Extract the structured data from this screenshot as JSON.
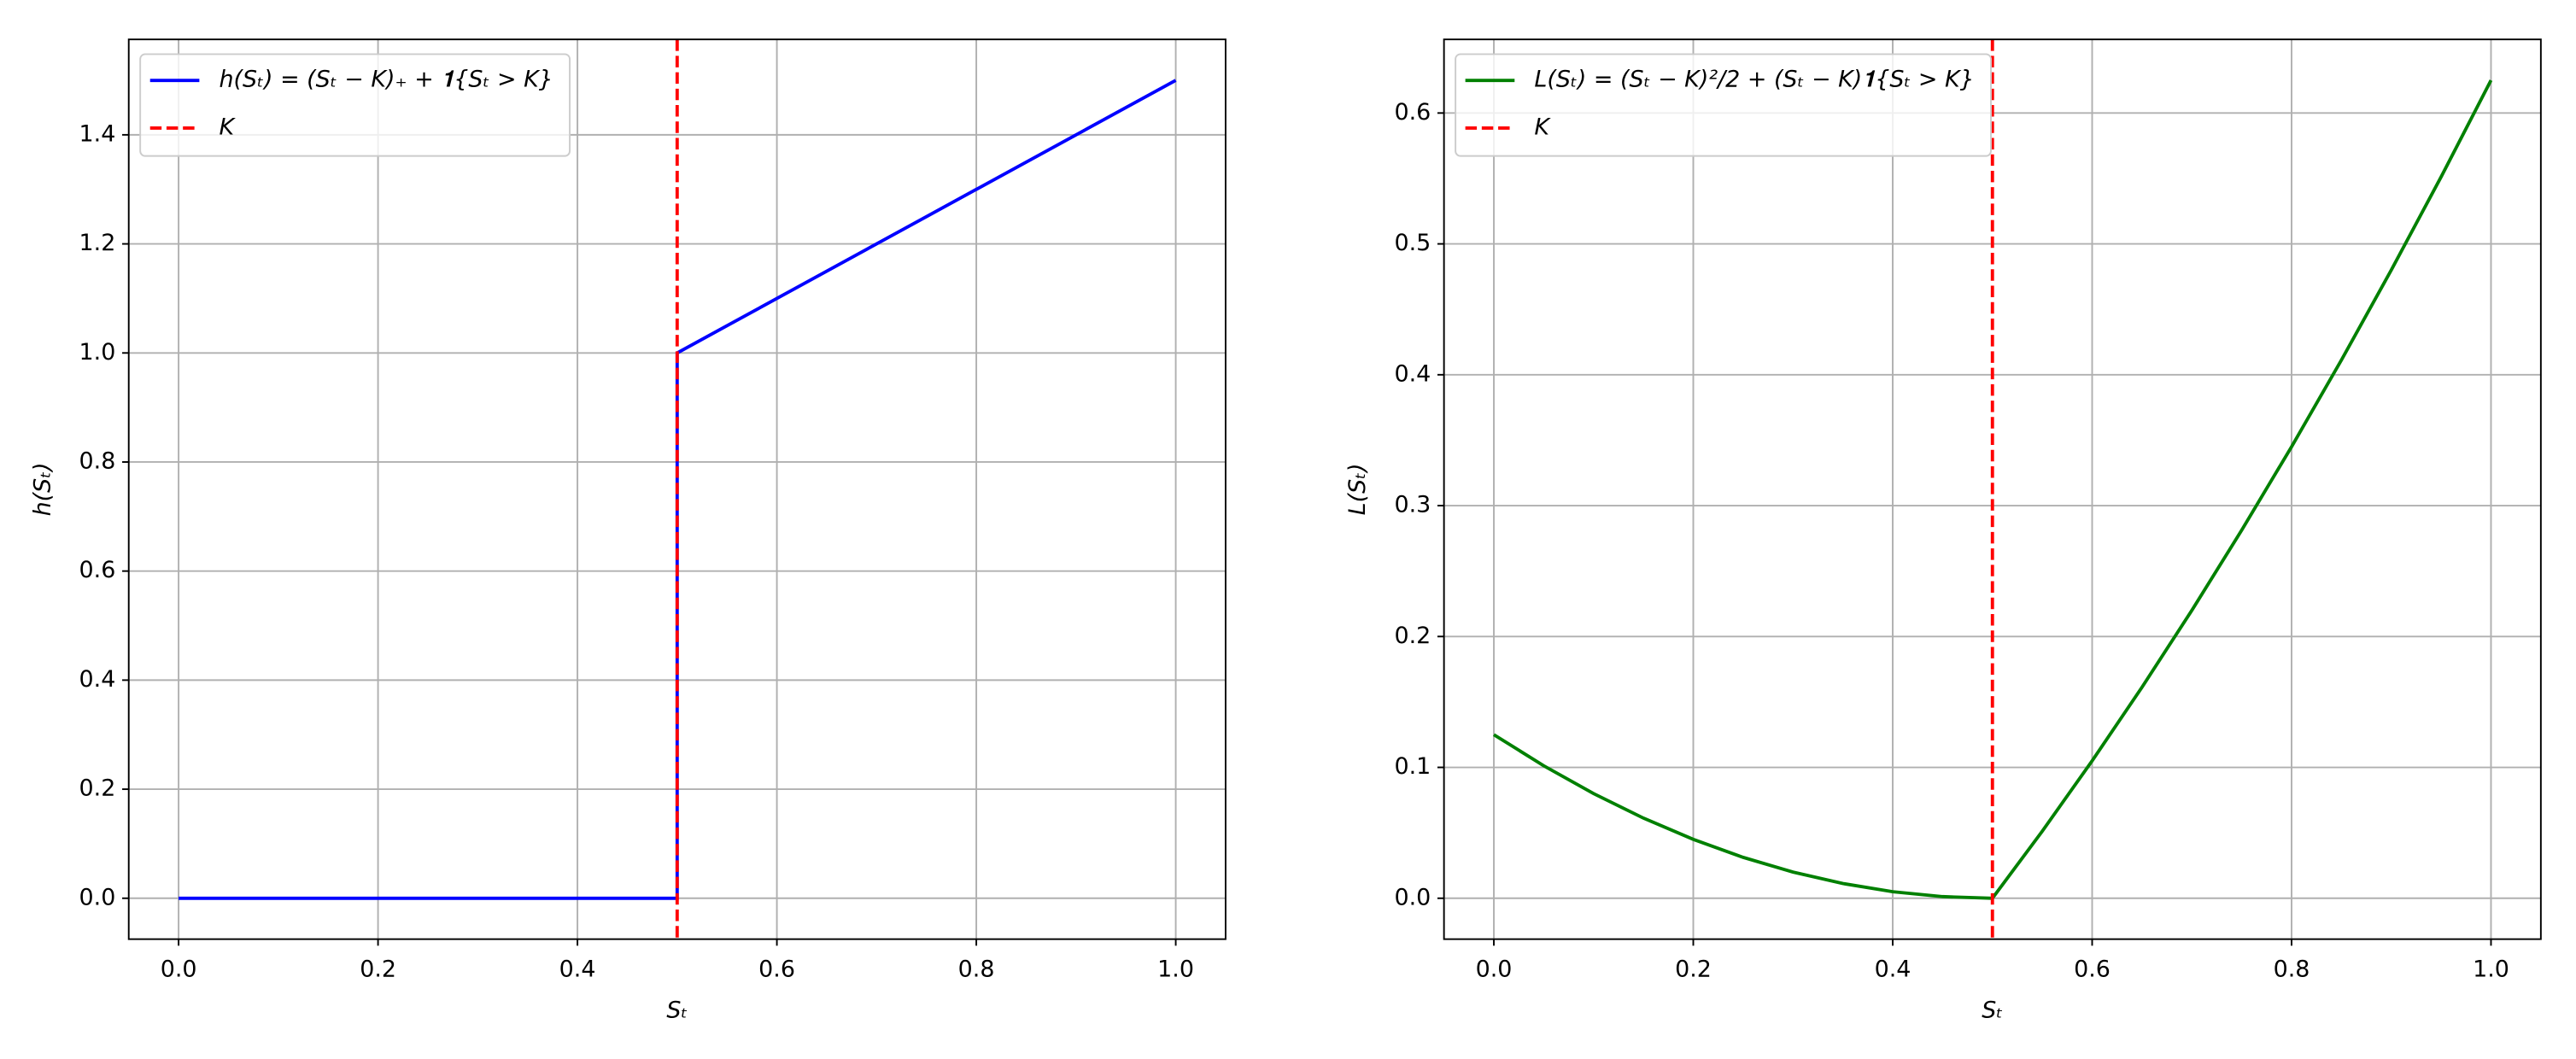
{
  "chart_data": [
    {
      "type": "line",
      "xlabel": "Sₜ",
      "ylabel": "h(Sₜ)",
      "xlim": [
        -0.05,
        1.05
      ],
      "ylim": [
        -0.075,
        1.575
      ],
      "xticks": [
        {
          "value": 0,
          "label": "0.0"
        },
        {
          "value": 0.2,
          "label": "0.2"
        },
        {
          "value": 0.4,
          "label": "0.4"
        },
        {
          "value": 0.6,
          "label": "0.6"
        },
        {
          "value": 0.8,
          "label": "0.8"
        },
        {
          "value": 1,
          "label": "1.0"
        }
      ],
      "yticks": [
        {
          "value": 0,
          "label": "0.0"
        },
        {
          "value": 0.2,
          "label": "0.2"
        },
        {
          "value": 0.4,
          "label": "0.4"
        },
        {
          "value": 0.6,
          "label": "0.6"
        },
        {
          "value": 0.8,
          "label": "0.8"
        },
        {
          "value": 1,
          "label": "1.0"
        },
        {
          "value": 1.2,
          "label": "1.2"
        },
        {
          "value": 1.4,
          "label": "1.4"
        }
      ],
      "grid": true,
      "legend": "upper-left",
      "series": [
        {
          "name": "h(Sₜ) = (Sₜ − K)₊ + 𝟏{Sₜ > K}",
          "color": "#0000ff",
          "x": [
            0,
            0.5,
            0.5,
            1
          ],
          "values": [
            0,
            0,
            1,
            1.5
          ]
        }
      ],
      "vlines": [
        {
          "name": "K",
          "color": "#ff0000",
          "x": 0.5
        }
      ]
    },
    {
      "type": "line",
      "xlabel": "Sₜ",
      "ylabel": "L(Sₜ)",
      "xlim": [
        -0.05,
        1.05
      ],
      "ylim": [
        -0.03125,
        0.65625
      ],
      "xticks": [
        {
          "value": 0,
          "label": "0.0"
        },
        {
          "value": 0.2,
          "label": "0.2"
        },
        {
          "value": 0.4,
          "label": "0.4"
        },
        {
          "value": 0.6,
          "label": "0.6"
        },
        {
          "value": 0.8,
          "label": "0.8"
        },
        {
          "value": 1,
          "label": "1.0"
        }
      ],
      "yticks": [
        {
          "value": 0,
          "label": "0.0"
        },
        {
          "value": 0.1,
          "label": "0.1"
        },
        {
          "value": 0.2,
          "label": "0.2"
        },
        {
          "value": 0.3,
          "label": "0.3"
        },
        {
          "value": 0.4,
          "label": "0.4"
        },
        {
          "value": 0.5,
          "label": "0.5"
        },
        {
          "value": 0.6,
          "label": "0.6"
        }
      ],
      "grid": true,
      "legend": "upper-left",
      "series": [
        {
          "name": "L(Sₜ) = (Sₜ − K)²/2 + (Sₜ − K)𝟏{Sₜ > K}",
          "color": "#008000",
          "x": [
            0,
            0.05,
            0.1,
            0.15,
            0.2,
            0.25,
            0.3,
            0.35,
            0.4,
            0.45,
            0.5,
            0.55,
            0.6,
            0.65,
            0.7,
            0.75,
            0.8,
            0.85,
            0.9,
            0.95,
            1
          ],
          "values": [
            0.125,
            0.10125,
            0.08,
            0.06125,
            0.045,
            0.03125,
            0.02,
            0.01125,
            0.005,
            0.00125,
            0,
            0.05125,
            0.105,
            0.16125,
            0.22,
            0.28125,
            0.345,
            0.41125,
            0.48,
            0.55125,
            0.625
          ]
        }
      ],
      "vlines": [
        {
          "name": "K",
          "color": "#ff0000",
          "x": 0.5
        }
      ]
    }
  ]
}
